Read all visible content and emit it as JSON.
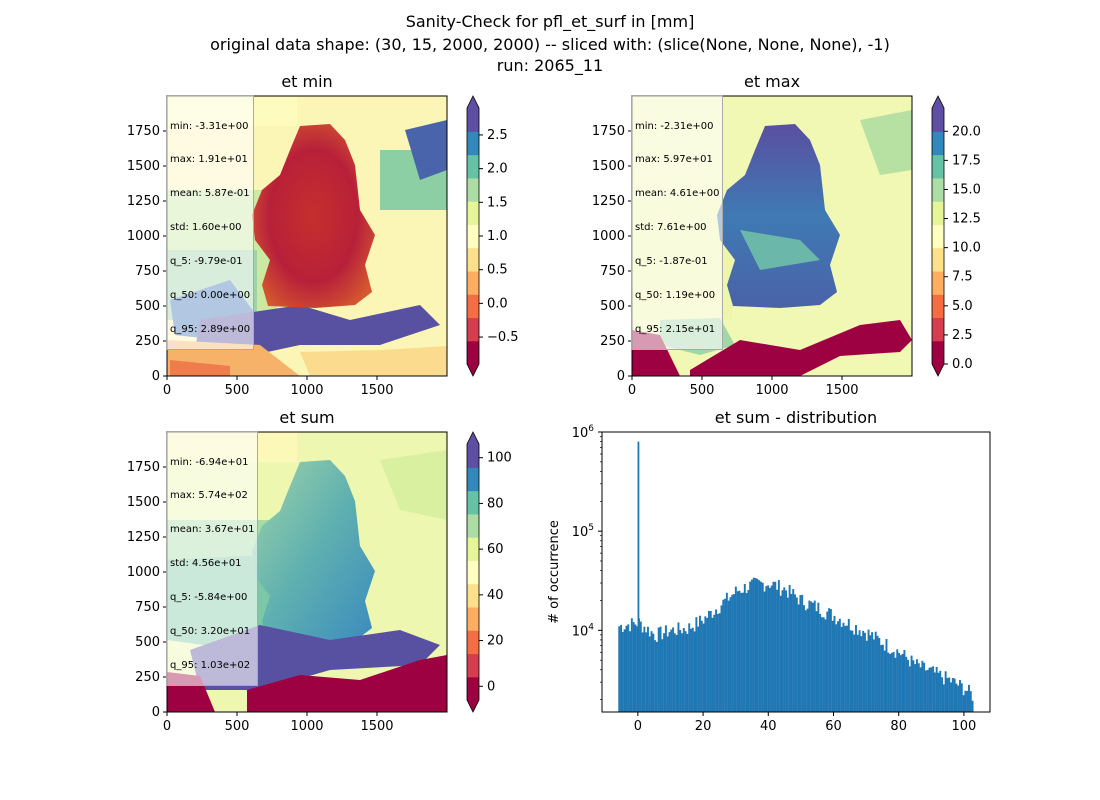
{
  "suptitle": {
    "line1": "Sanity-Check for pfl_et_surf in [mm]",
    "line2": "original data shape: (30, 15, 2000, 2000) -- sliced with: (slice(None, None, None), -1)",
    "line3": "run: 2065_11"
  },
  "colors": {
    "spectral": [
      "#9e0142",
      "#d53e4f",
      "#f46d43",
      "#fdae61",
      "#fee08b",
      "#ffffbf",
      "#e6f598",
      "#abdda4",
      "#66c2a5",
      "#3288bd",
      "#5e4fa2"
    ],
    "hist_bar": "#1f77b4",
    "germany_in_min": "#c23a2e",
    "germany_in_max": "#4f5dac"
  },
  "panels": {
    "et_min": {
      "title": "et min",
      "stats": [
        "min: -3.31e+00",
        "max: 1.91e+01",
        "mean: 5.87e-01",
        "std: 1.60e+00",
        "q_5: -9.79e-01",
        "q_50: 0.00e+00",
        "q_95: 2.89e+00"
      ],
      "vmin": -0.9,
      "vmax": 2.9,
      "cbar_ticks": [
        "2.5",
        "2.0",
        "1.5",
        "1.0",
        "0.5",
        "0.0",
        "−0.5"
      ]
    },
    "et_max": {
      "title": "et max",
      "stats": [
        "min: -2.31e+00",
        "max: 5.97e+01",
        "mean: 4.61e+00",
        "std: 7.61e+00",
        "q_5: -1.87e-01",
        "q_50: 1.19e+00",
        "q_95: 2.15e+01"
      ],
      "vmin": 0,
      "vmax": 22,
      "cbar_ticks": [
        "20.0",
        "17.5",
        "15.0",
        "12.5",
        "10.0",
        "7.5",
        "5.0",
        "2.5",
        "0.0"
      ]
    },
    "et_sum": {
      "title": "et sum",
      "stats": [
        "min: -6.94e+01",
        "max: 5.74e+02",
        "mean: 3.67e+01",
        "std: 4.56e+01",
        "q_5: -5.84e+00",
        "q_50: 3.20e+01",
        "q_95: 1.03e+02"
      ],
      "vmin": -6,
      "vmax": 106,
      "cbar_ticks": [
        "100",
        "80",
        "60",
        "40",
        "20",
        "0"
      ]
    }
  },
  "map_axes": {
    "x_ticks": [
      "0",
      "500",
      "1000",
      "1500"
    ],
    "y_ticks": [
      "1750",
      "1500",
      "1250",
      "1000",
      "750",
      "500",
      "250",
      "0"
    ]
  },
  "chart_data": [
    {
      "type": "heatmap",
      "title": "et min",
      "x": [
        0,
        2000
      ],
      "y": [
        0,
        2000
      ],
      "colormap": "Spectral",
      "vrange": [
        -0.9,
        2.9
      ]
    },
    {
      "type": "heatmap",
      "title": "et max",
      "x": [
        0,
        2000
      ],
      "y": [
        0,
        2000
      ],
      "colormap": "Spectral",
      "vrange": [
        0,
        22
      ]
    },
    {
      "type": "heatmap",
      "title": "et sum",
      "x": [
        0,
        2000
      ],
      "y": [
        0,
        2000
      ],
      "colormap": "Spectral",
      "vrange": [
        -6,
        106
      ]
    },
    {
      "type": "bar",
      "title": "et sum - distribution",
      "ylabel": "# of occurrence",
      "xlabel": "",
      "xlim": [
        -11,
        108
      ],
      "ylim": [
        1500,
        1000000
      ],
      "yscale": "log",
      "x_ticks": [
        "0",
        "20",
        "40",
        "60",
        "80",
        "100"
      ],
      "y_ticks": [
        "10",
        "10",
        "10"
      ],
      "y_tick_exponents": [
        "6",
        "5",
        "4"
      ],
      "spike": {
        "x": 0,
        "count": 800000
      },
      "profile_x": [
        -6,
        0,
        5,
        10,
        15,
        20,
        25,
        30,
        35,
        40,
        45,
        50,
        55,
        60,
        65,
        70,
        75,
        80,
        85,
        90,
        95,
        100,
        102.5
      ],
      "profile_y": [
        11000,
        12000,
        9000,
        10000,
        10500,
        13000,
        18000,
        25000,
        29000,
        30000,
        26000,
        20000,
        17000,
        14000,
        11500,
        9500,
        7500,
        6000,
        4500,
        3800,
        3200,
        2600,
        2200
      ]
    }
  ]
}
